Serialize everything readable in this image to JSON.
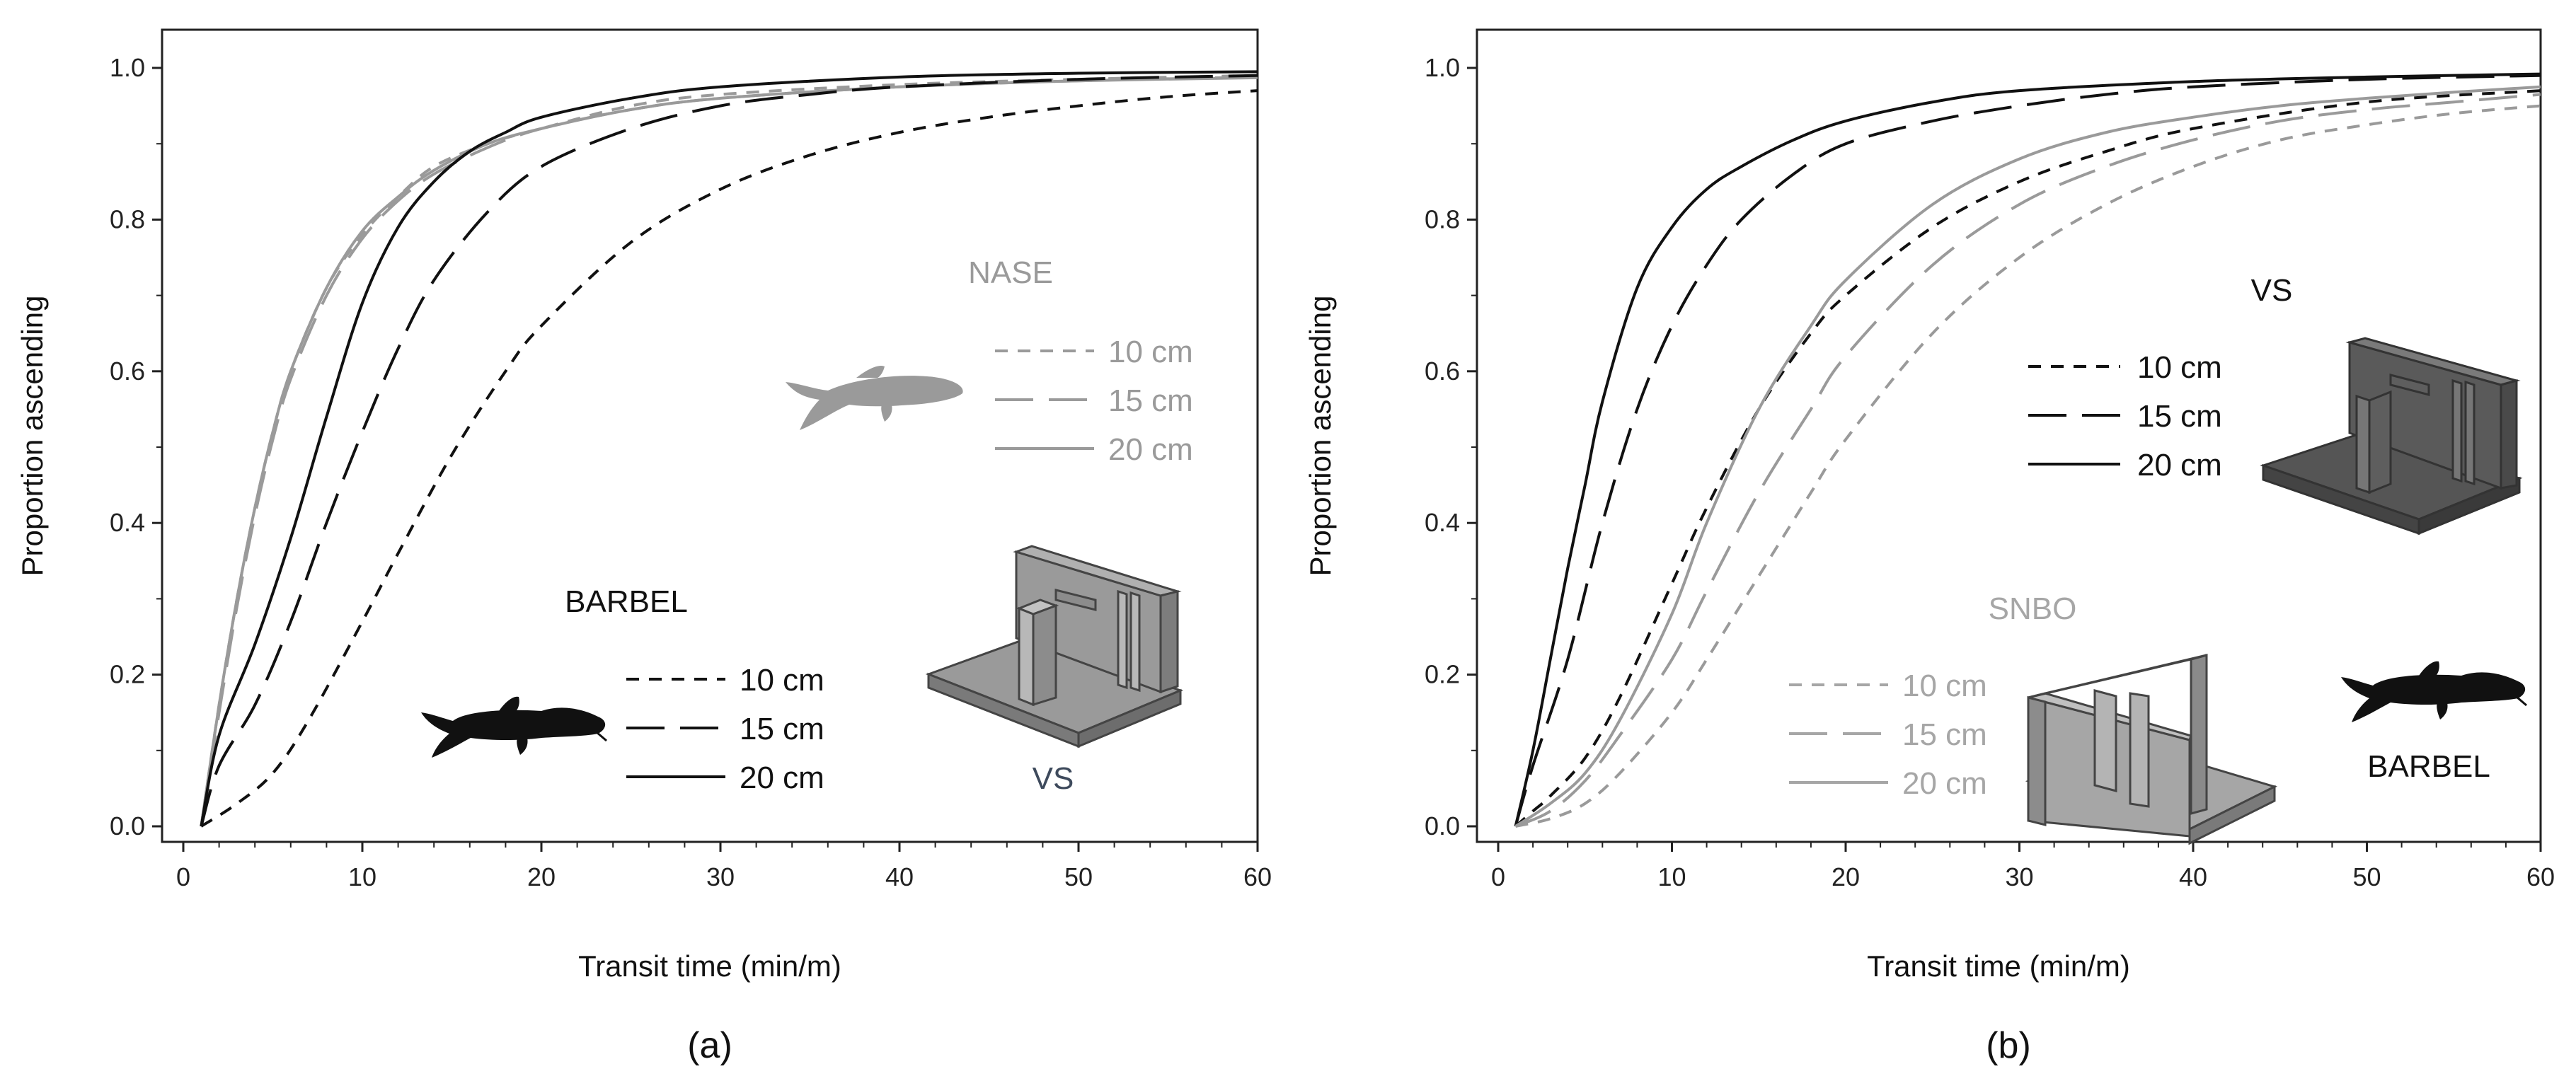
{
  "chart_data": [
    {
      "type": "line",
      "panel_label": "(a)",
      "xlabel": "Transit time (min/m)",
      "ylabel": "Proportion ascending",
      "xlim": [
        0,
        60
      ],
      "ylim": [
        0,
        1
      ],
      "xticks": [
        0,
        10,
        20,
        30,
        40,
        50,
        60
      ],
      "yticks": [
        0.0,
        0.2,
        0.4,
        0.6,
        0.8,
        1.0
      ],
      "ytick_labels": [
        "0.0",
        "0.2",
        "0.4",
        "0.6",
        "0.8",
        "1.0"
      ],
      "legends": [
        {
          "title": "NASE",
          "color": "#9a9a9a",
          "entries": [
            {
              "label": "10 cm",
              "dash": "dashed"
            },
            {
              "label": "15 cm",
              "dash": "longdash"
            },
            {
              "label": "20 cm",
              "dash": "solid"
            }
          ]
        },
        {
          "title": "BARBEL",
          "color": "#111111",
          "entries": [
            {
              "label": "10 cm",
              "dash": "dashed"
            },
            {
              "label": "15 cm",
              "dash": "longdash"
            },
            {
              "label": "20 cm",
              "dash": "solid"
            }
          ]
        }
      ],
      "fishway_label": "VS",
      "series": [
        {
          "name": "NASE 10 cm",
          "color": "#9a9a9a",
          "dash": "dashed",
          "x": [
            1,
            2,
            3,
            4,
            5,
            6,
            8,
            10,
            12,
            14,
            17,
            20,
            25,
            30,
            40,
            50,
            60
          ],
          "y": [
            0,
            0.16,
            0.3,
            0.42,
            0.52,
            0.6,
            0.71,
            0.78,
            0.83,
            0.87,
            0.9,
            0.92,
            0.95,
            0.965,
            0.978,
            0.985,
            0.99
          ]
        },
        {
          "name": "NASE 15 cm",
          "color": "#9a9a9a",
          "dash": "longdash",
          "x": [
            1,
            2,
            3,
            4,
            5,
            6,
            8,
            10,
            12,
            14,
            17,
            20,
            25,
            30,
            40,
            50,
            60
          ],
          "y": [
            0,
            0.15,
            0.29,
            0.41,
            0.51,
            0.59,
            0.7,
            0.775,
            0.825,
            0.86,
            0.895,
            0.92,
            0.945,
            0.96,
            0.975,
            0.983,
            0.988
          ]
        },
        {
          "name": "NASE 20 cm",
          "color": "#9a9a9a",
          "dash": "solid",
          "x": [
            1,
            2,
            3,
            4,
            5,
            6,
            8,
            10,
            12,
            14,
            17,
            20,
            25,
            30,
            40,
            50,
            60
          ],
          "y": [
            0,
            0.16,
            0.3,
            0.42,
            0.52,
            0.6,
            0.71,
            0.785,
            0.83,
            0.865,
            0.9,
            0.92,
            0.945,
            0.96,
            0.975,
            0.983,
            0.987
          ]
        },
        {
          "name": "BARBEL 10 cm",
          "color": "#111111",
          "dash": "dashed",
          "x": [
            1,
            3,
            5,
            7,
            10,
            12,
            15,
            18,
            20,
            25,
            30,
            35,
            40,
            45,
            50,
            55,
            60
          ],
          "y": [
            0,
            0.03,
            0.07,
            0.14,
            0.27,
            0.36,
            0.49,
            0.6,
            0.66,
            0.77,
            0.84,
            0.885,
            0.915,
            0.935,
            0.95,
            0.962,
            0.97
          ]
        },
        {
          "name": "BARBEL 15 cm",
          "color": "#111111",
          "dash": "longdash",
          "x": [
            1,
            2,
            4,
            6,
            8,
            10,
            12,
            14,
            17,
            20,
            25,
            30,
            35,
            40,
            50,
            60
          ],
          "y": [
            0,
            0.08,
            0.16,
            0.27,
            0.4,
            0.52,
            0.63,
            0.72,
            0.81,
            0.87,
            0.92,
            0.95,
            0.965,
            0.975,
            0.985,
            0.99
          ]
        },
        {
          "name": "BARBEL 20 cm",
          "color": "#111111",
          "dash": "solid",
          "x": [
            1,
            2,
            4,
            6,
            8,
            10,
            12,
            14,
            16,
            18,
            20,
            25,
            30,
            40,
            50,
            60
          ],
          "y": [
            0,
            0.12,
            0.24,
            0.38,
            0.54,
            0.69,
            0.79,
            0.85,
            0.89,
            0.915,
            0.935,
            0.96,
            0.975,
            0.988,
            0.993,
            0.995
          ]
        }
      ]
    },
    {
      "type": "line",
      "panel_label": "(b)",
      "xlabel": "Transit time (min/m)",
      "ylabel": "Proportion ascending",
      "xlim": [
        0,
        60
      ],
      "ylim": [
        0,
        1
      ],
      "xticks": [
        0,
        10,
        20,
        30,
        40,
        50,
        60
      ],
      "yticks": [
        0.0,
        0.2,
        0.4,
        0.6,
        0.8,
        1.0
      ],
      "ytick_labels": [
        "0.0",
        "0.2",
        "0.4",
        "0.6",
        "0.8",
        "1.0"
      ],
      "legends": [
        {
          "title": "VS",
          "color": "#111111",
          "entries": [
            {
              "label": "10 cm",
              "dash": "dashed"
            },
            {
              "label": "15 cm",
              "dash": "longdash"
            },
            {
              "label": "20 cm",
              "dash": "solid"
            }
          ]
        },
        {
          "title": "SNBO",
          "color": "#9a9a9a",
          "entries": [
            {
              "label": "10 cm",
              "dash": "dashed"
            },
            {
              "label": "15 cm",
              "dash": "longdash"
            },
            {
              "label": "20 cm",
              "dash": "solid"
            }
          ]
        }
      ],
      "species_label": "BARBEL",
      "series": [
        {
          "name": "VS 10 cm",
          "color": "#111111",
          "dash": "dashed",
          "x": [
            1,
            2,
            3,
            5,
            7,
            10,
            12,
            15,
            18,
            20,
            25,
            30,
            35,
            40,
            50,
            60
          ],
          "y": [
            0,
            0.02,
            0.04,
            0.09,
            0.17,
            0.32,
            0.42,
            0.55,
            0.65,
            0.7,
            0.79,
            0.85,
            0.89,
            0.92,
            0.955,
            0.97
          ]
        },
        {
          "name": "VS 15 cm",
          "color": "#111111",
          "dash": "longdash",
          "x": [
            1,
            2,
            4,
            6,
            8,
            10,
            12,
            14,
            17,
            20,
            25,
            30,
            35,
            40,
            50,
            60
          ],
          "y": [
            0,
            0.08,
            0.22,
            0.4,
            0.55,
            0.66,
            0.74,
            0.8,
            0.86,
            0.9,
            0.93,
            0.95,
            0.965,
            0.975,
            0.985,
            0.99
          ]
        },
        {
          "name": "VS 20 cm",
          "color": "#111111",
          "dash": "solid",
          "x": [
            1,
            2,
            3,
            4,
            5,
            6,
            8,
            10,
            12,
            14,
            17,
            20,
            25,
            30,
            40,
            50,
            60
          ],
          "y": [
            0,
            0.1,
            0.22,
            0.34,
            0.45,
            0.56,
            0.71,
            0.79,
            0.84,
            0.87,
            0.905,
            0.93,
            0.955,
            0.97,
            0.982,
            0.988,
            0.992
          ]
        },
        {
          "name": "SNBO 10 cm",
          "color": "#9a9a9a",
          "dash": "dashed",
          "x": [
            1,
            3,
            5,
            7,
            10,
            12,
            15,
            18,
            20,
            25,
            30,
            35,
            40,
            45,
            50,
            55,
            60
          ],
          "y": [
            0,
            0.01,
            0.03,
            0.07,
            0.15,
            0.22,
            0.33,
            0.44,
            0.51,
            0.65,
            0.75,
            0.82,
            0.87,
            0.905,
            0.925,
            0.94,
            0.95
          ]
        },
        {
          "name": "SNBO 15 cm",
          "color": "#9a9a9a",
          "dash": "longdash",
          "x": [
            1,
            3,
            5,
            7,
            10,
            12,
            15,
            18,
            20,
            25,
            30,
            35,
            40,
            45,
            50,
            55,
            60
          ],
          "y": [
            0,
            0.02,
            0.06,
            0.12,
            0.22,
            0.31,
            0.44,
            0.55,
            0.62,
            0.74,
            0.82,
            0.87,
            0.905,
            0.93,
            0.945,
            0.955,
            0.965
          ]
        },
        {
          "name": "SNBO 20 cm",
          "color": "#9a9a9a",
          "dash": "solid",
          "x": [
            1,
            3,
            5,
            7,
            10,
            12,
            15,
            18,
            20,
            25,
            30,
            35,
            40,
            45,
            50,
            55,
            60
          ],
          "y": [
            0,
            0.03,
            0.07,
            0.14,
            0.28,
            0.4,
            0.55,
            0.66,
            0.72,
            0.82,
            0.88,
            0.915,
            0.935,
            0.95,
            0.96,
            0.968,
            0.975
          ]
        }
      ]
    }
  ]
}
